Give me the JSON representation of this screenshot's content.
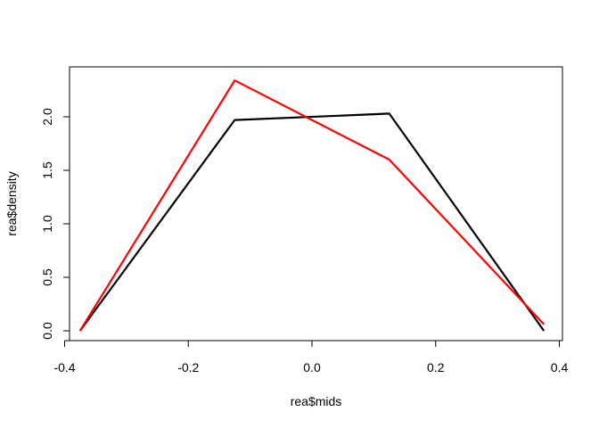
{
  "chart_data": {
    "type": "line",
    "title": "",
    "xlabel": "rea$mids",
    "ylabel": "rea$density",
    "xlim": [
      -0.4,
      0.4
    ],
    "ylim": [
      0.0,
      2.35
    ],
    "x_ticks": [
      -0.4,
      -0.2,
      0.0,
      0.2,
      0.4
    ],
    "x_tick_labels": [
      "-0.4",
      "-0.2",
      "0.0",
      "0.2",
      "0.4"
    ],
    "y_ticks": [
      0.0,
      0.5,
      1.0,
      1.5,
      2.0
    ],
    "y_tick_labels": [
      "0.0",
      "0.5",
      "1.0",
      "1.5",
      "2.0"
    ],
    "grid": false,
    "x": [
      -0.375,
      -0.125,
      0.125,
      0.375
    ],
    "series": [
      {
        "color": "#000000",
        "values": [
          0.0,
          1.97,
          2.03,
          0.0
        ]
      },
      {
        "color": "#ff0000",
        "values": [
          0.0,
          2.34,
          1.6,
          0.06
        ]
      }
    ]
  }
}
